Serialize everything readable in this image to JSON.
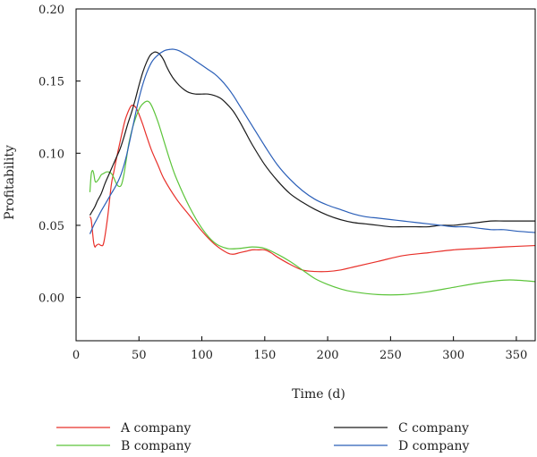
{
  "chart_data": {
    "type": "line",
    "xlabel": "Time (d)",
    "ylabel": "Profitability",
    "xlim": [
      0,
      365
    ],
    "ylim": [
      -0.03,
      0.2
    ],
    "x_ticks": [
      "0",
      "50",
      "100",
      "150",
      "200",
      "250",
      "300",
      "350"
    ],
    "y_ticks": [
      "0.00",
      "0.05",
      "0.10",
      "0.15",
      "0.20"
    ],
    "grid": false,
    "legend_position": "bottom",
    "series": [
      {
        "name": "A company",
        "color": "#e8302a",
        "x": [
          11,
          12,
          13,
          14,
          15,
          16,
          18,
          20,
          22,
          25,
          28,
          30,
          33,
          36,
          39,
          42,
          44,
          46,
          48,
          50,
          53,
          56,
          60,
          65,
          70,
          80,
          90,
          100,
          110,
          120,
          125,
          130,
          135,
          140,
          145,
          150,
          155,
          160,
          170,
          180,
          190,
          200,
          210,
          220,
          240,
          260,
          280,
          300,
          320,
          340,
          365
        ],
        "y": [
          0.056,
          0.054,
          0.046,
          0.038,
          0.035,
          0.036,
          0.037,
          0.036,
          0.038,
          0.055,
          0.078,
          0.087,
          0.1,
          0.112,
          0.123,
          0.13,
          0.133,
          0.133,
          0.131,
          0.127,
          0.12,
          0.112,
          0.102,
          0.092,
          0.082,
          0.068,
          0.057,
          0.046,
          0.037,
          0.031,
          0.03,
          0.031,
          0.032,
          0.033,
          0.033,
          0.033,
          0.031,
          0.028,
          0.023,
          0.019,
          0.018,
          0.018,
          0.019,
          0.021,
          0.025,
          0.029,
          0.031,
          0.033,
          0.034,
          0.035,
          0.036
        ]
      },
      {
        "name": "B company",
        "color": "#5cc43a",
        "x": [
          11,
          12,
          13,
          14,
          15,
          16,
          18,
          20,
          22,
          24,
          26,
          28,
          30,
          32,
          34,
          36,
          38,
          40,
          42,
          45,
          48,
          51,
          54,
          57,
          60,
          65,
          70,
          75,
          80,
          90,
          100,
          110,
          120,
          130,
          140,
          150,
          160,
          170,
          180,
          190,
          200,
          210,
          220,
          240,
          260,
          280,
          300,
          320,
          340,
          350,
          365
        ],
        "y": [
          0.073,
          0.085,
          0.088,
          0.086,
          0.081,
          0.08,
          0.082,
          0.085,
          0.086,
          0.087,
          0.087,
          0.086,
          0.083,
          0.079,
          0.077,
          0.078,
          0.085,
          0.096,
          0.107,
          0.118,
          0.126,
          0.132,
          0.135,
          0.136,
          0.133,
          0.122,
          0.108,
          0.094,
          0.082,
          0.063,
          0.048,
          0.038,
          0.034,
          0.034,
          0.035,
          0.034,
          0.03,
          0.025,
          0.019,
          0.013,
          0.009,
          0.006,
          0.004,
          0.002,
          0.002,
          0.004,
          0.007,
          0.01,
          0.012,
          0.012,
          0.011
        ]
      },
      {
        "name": "C company",
        "color": "#1a1a1a",
        "x": [
          11,
          13,
          15,
          17,
          20,
          23,
          26,
          29,
          32,
          35,
          38,
          41,
          44,
          47,
          50,
          53,
          56,
          59,
          62,
          64,
          66,
          68,
          70,
          72,
          75,
          78,
          82,
          86,
          90,
          95,
          100,
          105,
          110,
          115,
          120,
          125,
          130,
          135,
          140,
          150,
          160,
          170,
          180,
          190,
          200,
          210,
          220,
          230,
          240,
          250,
          260,
          270,
          280,
          290,
          300,
          310,
          320,
          330,
          340,
          350,
          365
        ],
        "y": [
          0.057,
          0.06,
          0.063,
          0.067,
          0.072,
          0.079,
          0.085,
          0.091,
          0.097,
          0.103,
          0.111,
          0.12,
          0.128,
          0.137,
          0.147,
          0.156,
          0.163,
          0.168,
          0.17,
          0.17,
          0.169,
          0.167,
          0.164,
          0.16,
          0.155,
          0.151,
          0.147,
          0.144,
          0.142,
          0.141,
          0.141,
          0.141,
          0.14,
          0.138,
          0.134,
          0.129,
          0.122,
          0.114,
          0.106,
          0.092,
          0.081,
          0.072,
          0.066,
          0.061,
          0.057,
          0.054,
          0.052,
          0.051,
          0.05,
          0.049,
          0.049,
          0.049,
          0.049,
          0.05,
          0.05,
          0.051,
          0.052,
          0.053,
          0.053,
          0.053,
          0.053
        ]
      },
      {
        "name": "D company",
        "color": "#2b5fb8",
        "x": [
          11,
          14,
          17,
          20,
          24,
          28,
          32,
          36,
          40,
          45,
          50,
          55,
          60,
          65,
          70,
          75,
          78,
          82,
          86,
          90,
          95,
          100,
          105,
          110,
          115,
          120,
          125,
          130,
          135,
          140,
          150,
          160,
          170,
          180,
          190,
          200,
          210,
          220,
          230,
          240,
          250,
          260,
          270,
          280,
          290,
          300,
          310,
          320,
          330,
          340,
          350,
          365
        ],
        "y": [
          0.044,
          0.05,
          0.055,
          0.06,
          0.066,
          0.072,
          0.078,
          0.086,
          0.098,
          0.118,
          0.138,
          0.153,
          0.163,
          0.168,
          0.171,
          0.172,
          0.172,
          0.171,
          0.169,
          0.167,
          0.164,
          0.161,
          0.158,
          0.155,
          0.151,
          0.146,
          0.14,
          0.133,
          0.126,
          0.119,
          0.105,
          0.092,
          0.082,
          0.074,
          0.068,
          0.064,
          0.061,
          0.058,
          0.056,
          0.055,
          0.054,
          0.053,
          0.052,
          0.051,
          0.05,
          0.049,
          0.049,
          0.048,
          0.047,
          0.047,
          0.046,
          0.045
        ]
      }
    ]
  }
}
